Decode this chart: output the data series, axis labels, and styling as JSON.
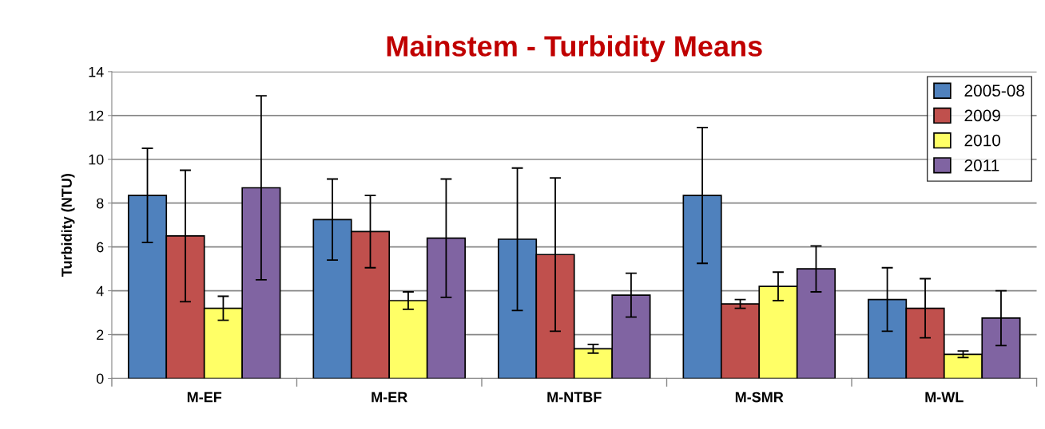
{
  "chart_data": {
    "type": "bar",
    "title": "Mainstem - Turbidity Means",
    "ylabel": "Turbidity (NTU)",
    "categories": [
      "M-EF",
      "M-ER",
      "M-NTBF",
      "M-SMR",
      "M-WL"
    ],
    "series": [
      {
        "name": "2005-08",
        "color": "#4f81bd",
        "values": [
          8.35,
          7.25,
          6.35,
          8.35,
          3.6
        ],
        "errors": [
          2.15,
          1.85,
          3.25,
          3.1,
          1.45
        ]
      },
      {
        "name": "2009",
        "color": "#c0504d",
        "values": [
          6.5,
          6.7,
          5.65,
          3.4,
          3.2
        ],
        "errors": [
          3.0,
          1.65,
          3.5,
          0.2,
          1.35
        ]
      },
      {
        "name": "2010",
        "color": "#ffff66",
        "values": [
          3.2,
          3.55,
          1.35,
          4.2,
          1.1
        ],
        "errors": [
          0.55,
          0.4,
          0.2,
          0.65,
          0.15
        ]
      },
      {
        "name": "2011",
        "color": "#8064a2",
        "values": [
          8.7,
          6.4,
          3.8,
          5.0,
          2.75
        ],
        "errors": [
          4.2,
          2.7,
          1.0,
          1.05,
          1.25
        ]
      }
    ],
    "ylim": [
      0,
      14
    ],
    "yticks": [
      0,
      2,
      4,
      6,
      8,
      10,
      12,
      14
    ],
    "grid": "y",
    "legend": "top right"
  }
}
